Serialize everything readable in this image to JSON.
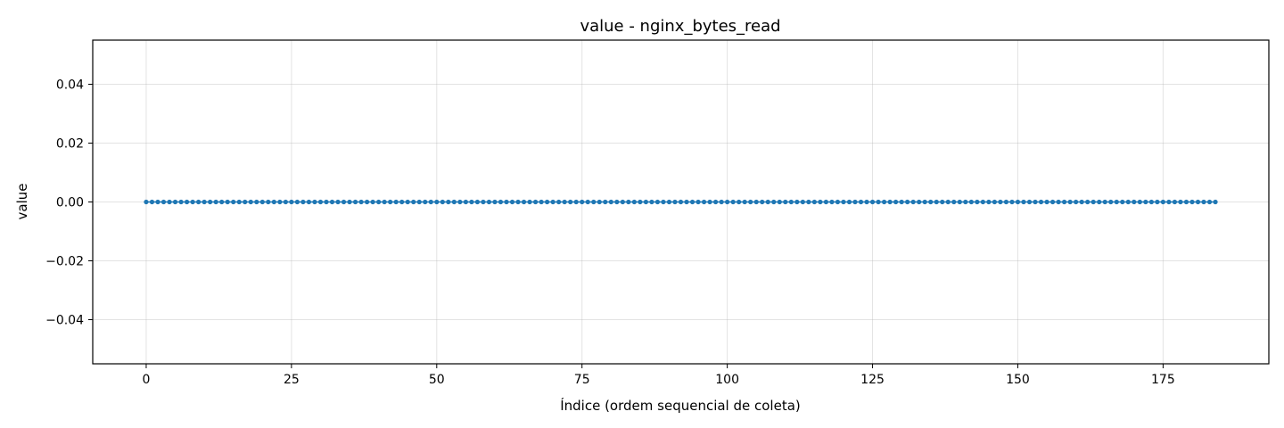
{
  "chart_data": {
    "type": "line",
    "title": "value - nginx_bytes_read",
    "xlabel": "Índice (ordem sequencial de coleta)",
    "ylabel": "value",
    "xlim": [
      -9.2,
      193.2
    ],
    "ylim": [
      -0.055,
      0.055
    ],
    "xticks": [
      0,
      25,
      50,
      75,
      100,
      125,
      150,
      175
    ],
    "xtick_labels": [
      "0",
      "25",
      "50",
      "75",
      "100",
      "125",
      "150",
      "175"
    ],
    "yticks": [
      0.04,
      0.02,
      0.0,
      -0.02,
      -0.04
    ],
    "ytick_labels": [
      "0.04",
      "0.02",
      "0.00",
      "−0.02",
      "−0.04"
    ],
    "grid": true,
    "series": [
      {
        "color": "#1f77b4",
        "marker": "circle",
        "x_start": 0,
        "x_end": 184,
        "x_step": 1,
        "y_constant": 0.0
      }
    ]
  }
}
